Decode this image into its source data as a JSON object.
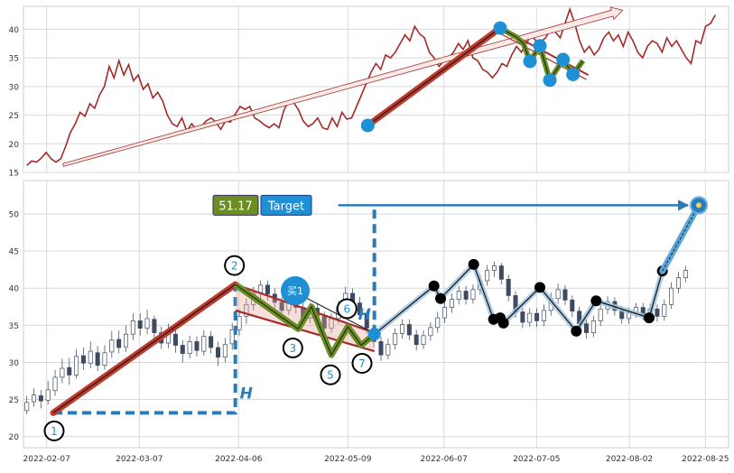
{
  "chart_data": [
    {
      "type": "line",
      "panel": "overview",
      "x_start": "2022-01-31",
      "x_end": "2022-09-01",
      "ylim": [
        15,
        44
      ],
      "yticks": [
        15,
        20,
        25,
        30,
        35,
        40
      ],
      "grid": true,
      "line_color": "#a52a2a",
      "series": [
        {
          "values": [
            16.2,
            17,
            16.8,
            17.5,
            18.5,
            17.4,
            16.8,
            17.4,
            19.5,
            22,
            23.5,
            25.5,
            24.8,
            27,
            26.2,
            28.5,
            30,
            33.5,
            31.5,
            34.5,
            32,
            33.8,
            31,
            32,
            29.5,
            30.5,
            28,
            29,
            27.5,
            25,
            23.5,
            23,
            24.5,
            22.2,
            23.5,
            22.5,
            23,
            24,
            24.5,
            23.8,
            22.5,
            24,
            23.8,
            25.2,
            26.5,
            26,
            26.5,
            24.5,
            24,
            23.3,
            22.8,
            23.5,
            22.8,
            25.8,
            27.5,
            27.2,
            26,
            24,
            23,
            23.5,
            24.5,
            22.8,
            22.5,
            24.5,
            23,
            25.5,
            24.3,
            24.5,
            26.5,
            28.5,
            30.5,
            32.5,
            34,
            33,
            35.5,
            35,
            36,
            37.5,
            39,
            38,
            40.5,
            39.2,
            38.5,
            36,
            35,
            33.5,
            34.5,
            35,
            36,
            37.5,
            36.5,
            38,
            35,
            34.5,
            33,
            32.5,
            31.5,
            32.5,
            34,
            33.5,
            35.5,
            37,
            36,
            37.5,
            39,
            38,
            37.8,
            38.5,
            40,
            39.5,
            38.5,
            41,
            43.5,
            41,
            38,
            36,
            37,
            35.5,
            36.5,
            38.5,
            39.5,
            38,
            39,
            37,
            39.5,
            38,
            36,
            35,
            37,
            38,
            37.5,
            36,
            38.5,
            37,
            38,
            36.5,
            35,
            34,
            38,
            37.5,
            40.5,
            41,
            42.5
          ]
        }
      ],
      "annotations": {
        "long_arrow": {
          "from": {
            "date": "2022-02-12",
            "value": 16.3
          },
          "to": {
            "date": "2022-07-31",
            "value": 43.3
          }
        },
        "pattern_start": {
          "date": "2022-05-15",
          "value": 23.2
        },
        "pattern_peak": {
          "date": "2022-06-24",
          "value": 40.2
        },
        "zigzag_points": [
          {
            "date": "2022-06-24",
            "value": 40.2
          },
          {
            "date": "2022-06-29",
            "value": 38.6
          },
          {
            "date": "2022-07-01",
            "value": 37.5
          },
          {
            "date": "2022-07-03",
            "value": 34.4
          },
          {
            "date": "2022-07-06",
            "value": 37.1
          },
          {
            "date": "2022-07-09",
            "value": 31.1
          },
          {
            "date": "2022-07-13",
            "value": 34.7
          },
          {
            "date": "2022-07-16",
            "value": 32.1
          },
          {
            "date": "2022-07-19",
            "value": 34.5
          }
        ]
      }
    },
    {
      "type": "candlestick",
      "panel": "detail",
      "x_start": "2022-01-31",
      "x_end": "2022-09-01",
      "ylim": [
        18.5,
        54.5
      ],
      "yticks": [
        20,
        25,
        30,
        35,
        40,
        45,
        50
      ],
      "xticks": [
        "2022-02-07",
        "2022-03-07",
        "2022-04-06",
        "2022-05-09",
        "2022-06-07",
        "2022-07-05",
        "2022-08-02",
        "2022-08-25"
      ],
      "grid": true,
      "candles": [
        {
          "o": 23.5,
          "c": 24.6,
          "h": 25.5,
          "l": 23.0
        },
        {
          "o": 24.7,
          "c": 25.6,
          "h": 26.5,
          "l": 24.0
        },
        {
          "o": 25.5,
          "c": 24.8,
          "h": 26.3,
          "l": 23.8
        },
        {
          "o": 24.9,
          "c": 26.3,
          "h": 27.5,
          "l": 24.3
        },
        {
          "o": 26.2,
          "c": 28.0,
          "h": 29.0,
          "l": 25.5
        },
        {
          "o": 28.0,
          "c": 29.2,
          "h": 30.5,
          "l": 27.2
        },
        {
          "o": 29.3,
          "c": 28.3,
          "h": 30.6,
          "l": 27.0
        },
        {
          "o": 28.3,
          "c": 30.8,
          "h": 31.8,
          "l": 27.8
        },
        {
          "o": 30.9,
          "c": 29.9,
          "h": 32.0,
          "l": 29.0
        },
        {
          "o": 29.9,
          "c": 31.5,
          "h": 32.8,
          "l": 29.2
        },
        {
          "o": 31.3,
          "c": 29.6,
          "h": 32.2,
          "l": 28.8
        },
        {
          "o": 29.6,
          "c": 31.3,
          "h": 32.3,
          "l": 29.0
        },
        {
          "o": 31.4,
          "c": 33.0,
          "h": 34.2,
          "l": 30.6
        },
        {
          "o": 33.1,
          "c": 32.0,
          "h": 34.3,
          "l": 31.2
        },
        {
          "o": 32.1,
          "c": 33.8,
          "h": 35.0,
          "l": 31.4
        },
        {
          "o": 33.8,
          "c": 35.6,
          "h": 36.6,
          "l": 33.0
        },
        {
          "o": 35.6,
          "c": 34.6,
          "h": 36.6,
          "l": 33.6
        },
        {
          "o": 34.6,
          "c": 35.9,
          "h": 37.1,
          "l": 33.8
        },
        {
          "o": 35.8,
          "c": 34.0,
          "h": 36.3,
          "l": 33.2
        },
        {
          "o": 34.0,
          "c": 32.6,
          "h": 34.8,
          "l": 31.8
        },
        {
          "o": 32.6,
          "c": 33.8,
          "h": 35.2,
          "l": 31.9
        },
        {
          "o": 33.8,
          "c": 32.3,
          "h": 34.6,
          "l": 31.3
        },
        {
          "o": 32.3,
          "c": 31.2,
          "h": 33.0,
          "l": 30.0
        },
        {
          "o": 31.2,
          "c": 32.8,
          "h": 33.6,
          "l": 30.5
        },
        {
          "o": 32.8,
          "c": 31.6,
          "h": 33.5,
          "l": 30.8
        },
        {
          "o": 31.5,
          "c": 33.5,
          "h": 34.3,
          "l": 30.9
        },
        {
          "o": 33.5,
          "c": 32.0,
          "h": 34.2,
          "l": 31.2
        },
        {
          "o": 32.0,
          "c": 30.7,
          "h": 32.8,
          "l": 29.5
        },
        {
          "o": 30.7,
          "c": 32.4,
          "h": 33.3,
          "l": 30.0
        },
        {
          "o": 32.5,
          "c": 34.4,
          "h": 35.3,
          "l": 31.7
        },
        {
          "o": 34.4,
          "c": 36.2,
          "h": 37.2,
          "l": 33.6
        },
        {
          "o": 36.2,
          "c": 37.8,
          "h": 38.6,
          "l": 35.2
        },
        {
          "o": 37.8,
          "c": 39.4,
          "h": 40.2,
          "l": 37.0
        },
        {
          "o": 39.4,
          "c": 40.4,
          "h": 41.0,
          "l": 38.5
        },
        {
          "o": 40.4,
          "c": 39.2,
          "h": 41.0,
          "l": 38.3
        },
        {
          "o": 39.2,
          "c": 38.1,
          "h": 40.0,
          "l": 37.3
        },
        {
          "o": 38.1,
          "c": 37.0,
          "h": 38.8,
          "l": 36.2
        },
        {
          "o": 37.0,
          "c": 38.3,
          "h": 39.0,
          "l": 36.4
        },
        {
          "o": 38.3,
          "c": 37.4,
          "h": 39.2,
          "l": 36.6
        },
        {
          "o": 37.4,
          "c": 36.0,
          "h": 38.0,
          "l": 35.2
        },
        {
          "o": 36.0,
          "c": 37.3,
          "h": 38.0,
          "l": 35.3
        },
        {
          "o": 37.3,
          "c": 36.2,
          "h": 38.0,
          "l": 35.5
        },
        {
          "o": 36.2,
          "c": 34.6,
          "h": 36.8,
          "l": 33.8
        },
        {
          "o": 34.6,
          "c": 35.9,
          "h": 36.6,
          "l": 34.0
        },
        {
          "o": 35.9,
          "c": 37.5,
          "h": 38.3,
          "l": 35.2
        },
        {
          "o": 37.5,
          "c": 39.3,
          "h": 40.2,
          "l": 36.8
        },
        {
          "o": 39.3,
          "c": 38.0,
          "h": 40.0,
          "l": 37.2
        },
        {
          "o": 38.0,
          "c": 36.4,
          "h": 38.8,
          "l": 35.8
        },
        {
          "o": 36.4,
          "c": 34.6,
          "h": 37.0,
          "l": 33.9
        },
        {
          "o": 34.6,
          "c": 32.8,
          "h": 35.2,
          "l": 32.0
        },
        {
          "o": 32.8,
          "c": 31.0,
          "h": 33.5,
          "l": 30.2
        },
        {
          "o": 31.0,
          "c": 32.4,
          "h": 33.2,
          "l": 30.4
        },
        {
          "o": 32.4,
          "c": 33.9,
          "h": 34.6,
          "l": 31.7
        },
        {
          "o": 33.9,
          "c": 35.1,
          "h": 35.8,
          "l": 33.2
        },
        {
          "o": 35.1,
          "c": 33.7,
          "h": 35.8,
          "l": 33.0
        },
        {
          "o": 33.7,
          "c": 32.4,
          "h": 34.4,
          "l": 31.6
        },
        {
          "o": 32.4,
          "c": 33.6,
          "h": 34.3,
          "l": 31.8
        },
        {
          "o": 33.6,
          "c": 34.7,
          "h": 35.4,
          "l": 32.9
        },
        {
          "o": 34.7,
          "c": 36.0,
          "h": 36.8,
          "l": 34.0
        },
        {
          "o": 36.0,
          "c": 37.4,
          "h": 38.1,
          "l": 35.3
        },
        {
          "o": 37.4,
          "c": 38.5,
          "h": 39.3,
          "l": 36.7
        },
        {
          "o": 38.5,
          "c": 39.6,
          "h": 40.3,
          "l": 37.8
        },
        {
          "o": 39.6,
          "c": 38.5,
          "h": 40.3,
          "l": 37.8
        },
        {
          "o": 38.5,
          "c": 39.8,
          "h": 40.5,
          "l": 37.9
        },
        {
          "o": 39.8,
          "c": 41.0,
          "h": 41.8,
          "l": 39.1
        },
        {
          "o": 41.0,
          "c": 42.4,
          "h": 43.1,
          "l": 40.3
        },
        {
          "o": 42.4,
          "c": 43.0,
          "h": 43.6,
          "l": 41.5
        },
        {
          "o": 43.0,
          "c": 41.2,
          "h": 43.4,
          "l": 40.5
        },
        {
          "o": 41.2,
          "c": 39.0,
          "h": 41.8,
          "l": 38.2
        },
        {
          "o": 39.0,
          "c": 36.8,
          "h": 39.6,
          "l": 36.0
        },
        {
          "o": 36.8,
          "c": 35.4,
          "h": 37.4,
          "l": 34.6
        },
        {
          "o": 35.4,
          "c": 36.6,
          "h": 37.3,
          "l": 34.8
        },
        {
          "o": 36.6,
          "c": 35.6,
          "h": 37.3,
          "l": 34.8
        },
        {
          "o": 35.6,
          "c": 37.0,
          "h": 37.8,
          "l": 34.9
        },
        {
          "o": 37.0,
          "c": 38.6,
          "h": 39.4,
          "l": 36.3
        },
        {
          "o": 38.6,
          "c": 39.8,
          "h": 40.6,
          "l": 37.9
        },
        {
          "o": 39.8,
          "c": 38.4,
          "h": 40.4,
          "l": 37.7
        },
        {
          "o": 38.4,
          "c": 36.9,
          "h": 39.0,
          "l": 36.1
        },
        {
          "o": 36.9,
          "c": 35.2,
          "h": 37.5,
          "l": 34.4
        },
        {
          "o": 35.2,
          "c": 34.0,
          "h": 35.8,
          "l": 33.2
        },
        {
          "o": 34.0,
          "c": 35.6,
          "h": 36.3,
          "l": 33.4
        },
        {
          "o": 35.6,
          "c": 37.2,
          "h": 37.9,
          "l": 34.9
        },
        {
          "o": 37.2,
          "c": 38.2,
          "h": 38.9,
          "l": 36.5
        },
        {
          "o": 38.2,
          "c": 37.0,
          "h": 38.8,
          "l": 36.3
        },
        {
          "o": 37.0,
          "c": 35.9,
          "h": 37.6,
          "l": 35.2
        },
        {
          "o": 35.9,
          "c": 36.7,
          "h": 37.4,
          "l": 35.2
        },
        {
          "o": 36.7,
          "c": 37.4,
          "h": 38.0,
          "l": 36.0
        },
        {
          "o": 37.4,
          "c": 36.4,
          "h": 38.0,
          "l": 35.7
        },
        {
          "o": 36.4,
          "c": 37.2,
          "h": 37.9,
          "l": 35.8
        },
        {
          "o": 37.2,
          "c": 36.2,
          "h": 37.8,
          "l": 35.5
        },
        {
          "o": 36.2,
          "c": 37.8,
          "h": 38.5,
          "l": 35.6
        },
        {
          "o": 37.8,
          "c": 40.0,
          "h": 40.8,
          "l": 37.2
        },
        {
          "o": 40.0,
          "c": 41.4,
          "h": 42.2,
          "l": 39.3
        },
        {
          "o": 41.4,
          "c": 42.4,
          "h": 43.0,
          "l": 40.8
        }
      ],
      "pattern": {
        "start": {
          "label": "1",
          "date": "2022-02-09",
          "value": 23.2
        },
        "peak": {
          "label": "2",
          "date": "2022-04-05",
          "value": 40.5
        },
        "channel_upper": {
          "from": {
            "date": "2022-04-05",
            "value": 40.5
          },
          "to": {
            "date": "2022-05-17",
            "value": 34.0
          }
        },
        "channel_lower": {
          "from": {
            "date": "2022-04-05",
            "value": 37.0
          },
          "to": {
            "date": "2022-05-17",
            "value": 31.5
          }
        },
        "zigzag": [
          {
            "label": "",
            "date": "2022-04-05",
            "value": 40.5
          },
          {
            "label": "3",
            "date": "2022-04-24",
            "value": 34.5
          },
          {
            "label": "",
            "date": "2022-04-28",
            "value": 37.5
          },
          {
            "label": "5",
            "date": "2022-05-04",
            "value": 31.0
          },
          {
            "label": "6",
            "date": "2022-05-09",
            "value": 34.8
          },
          {
            "label": "7",
            "date": "2022-05-13",
            "value": 32.3
          },
          {
            "label": "",
            "date": "2022-05-17",
            "value": 33.8
          }
        ],
        "height_marker": "H",
        "buy_label": "买1",
        "buy_point": {
          "date": "2022-05-17",
          "value": 33.8
        },
        "target_value": 51.17,
        "target_value_text": "51.17",
        "target_label": "Target",
        "target_date": "2022-08-23"
      },
      "swing_points": [
        {
          "date": "2022-05-17",
          "value": 33.8
        },
        {
          "date": "2022-06-04",
          "value": 40.3
        },
        {
          "date": "2022-06-06",
          "value": 38.6
        },
        {
          "date": "2022-06-16",
          "value": 43.2
        },
        {
          "date": "2022-06-22",
          "value": 35.8
        },
        {
          "date": "2022-06-24",
          "value": 36.0
        },
        {
          "date": "2022-06-25",
          "value": 35.3
        },
        {
          "date": "2022-07-06",
          "value": 40.1
        },
        {
          "date": "2022-07-17",
          "value": 34.2
        },
        {
          "date": "2022-07-23",
          "value": 38.3
        },
        {
          "date": "2022-08-08",
          "value": 36.0
        },
        {
          "date": "2022-08-12",
          "value": 42.3
        }
      ]
    }
  ]
}
